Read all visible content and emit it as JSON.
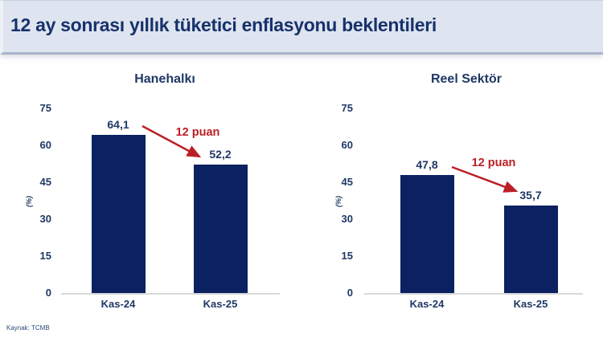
{
  "header": {
    "title": "12 ay sonrası yıllık tüketici enflasyonu beklentileri"
  },
  "source": "Kaynak: TCMB",
  "colors": {
    "bar": "#0b2161",
    "accent_red": "#bb2025",
    "navy_text": "#1f3864",
    "header_bg": "#dfe5f0",
    "baseline_gray": "#d9d9d9"
  },
  "chart_data": [
    {
      "type": "bar",
      "title": "Hanehalkı",
      "categories": [
        "Kas-24",
        "Kas-25"
      ],
      "values": [
        64.1,
        52.2
      ],
      "value_labels": [
        "64,1",
        "52,2"
      ],
      "annotation": "12 puan",
      "ylabel": "(%)",
      "yticks": [
        0,
        15,
        30,
        45,
        60,
        75
      ],
      "ylim": [
        0,
        75
      ],
      "grid": false,
      "legend": false
    },
    {
      "type": "bar",
      "title": "Reel Sektör",
      "categories": [
        "Kas-24",
        "Kas-25"
      ],
      "values": [
        47.8,
        35.7
      ],
      "value_labels": [
        "47,8",
        "35,7"
      ],
      "annotation": "12 puan",
      "ylabel": "(%)",
      "yticks": [
        0,
        15,
        30,
        45,
        60,
        75
      ],
      "ylim": [
        0,
        75
      ],
      "grid": false,
      "legend": false
    }
  ]
}
